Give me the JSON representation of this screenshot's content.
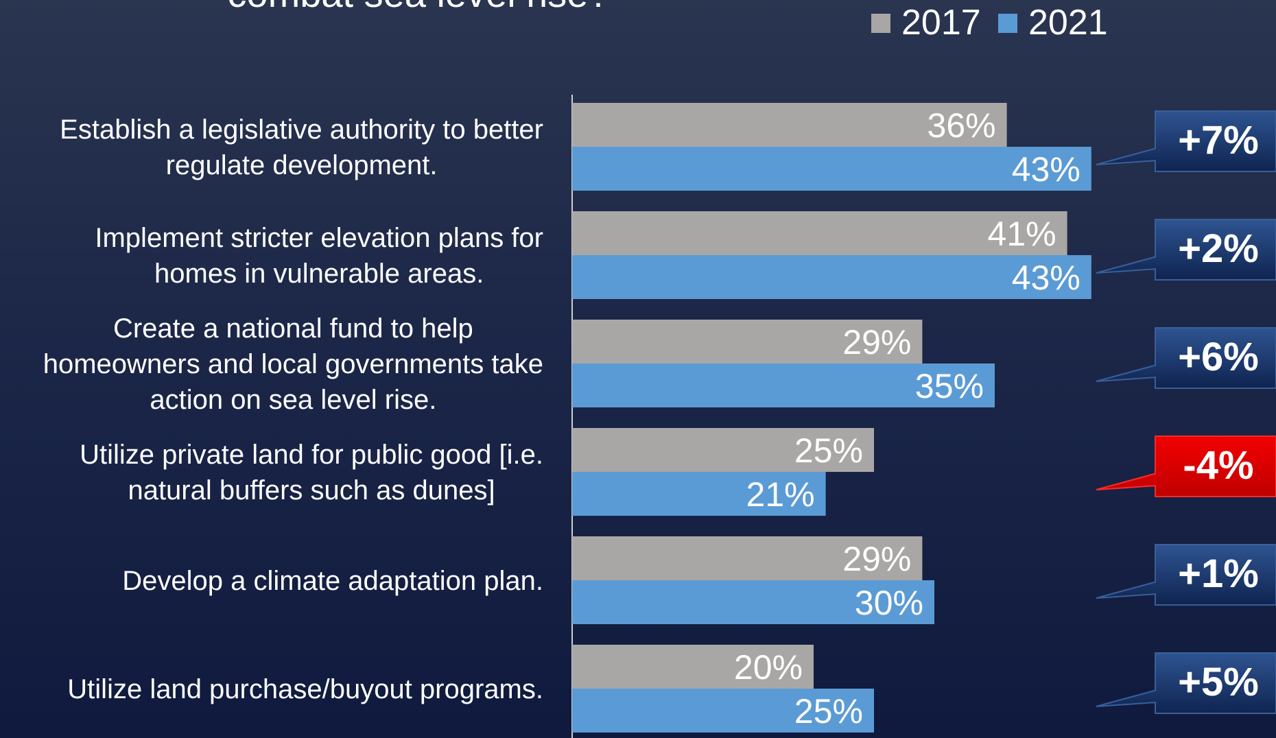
{
  "chart_data": {
    "type": "bar",
    "orientation": "horizontal",
    "title": "combat sea level rise?",
    "categories": [
      [
        "Establish a legislative authority to better",
        "regulate development."
      ],
      [
        "Implement stricter elevation plans for",
        "homes in vulnerable areas."
      ],
      [
        "Create a national fund to help",
        "homeowners and local governments take",
        "action on sea level rise."
      ],
      [
        "Utilize private land for public good [i.e.",
        "natural buffers such as dunes]"
      ],
      [
        "Develop a climate adaptation plan."
      ],
      [
        "Utilize land purchase/buyout programs."
      ]
    ],
    "series": [
      {
        "name": "2017",
        "values": [
          36,
          41,
          29,
          25,
          29,
          20
        ],
        "labels": [
          "36%",
          "41%",
          "29%",
          "25%",
          "29%",
          "20%"
        ],
        "color": "#a9a7a6"
      },
      {
        "name": "2021",
        "values": [
          43,
          43,
          35,
          21,
          30,
          25
        ],
        "labels": [
          "43%",
          "43%",
          "35%",
          "21%",
          "30%",
          "25%"
        ],
        "color": "#5b9bd5"
      }
    ],
    "changes": [
      {
        "label": "+7%",
        "positive": true
      },
      {
        "label": "+2%",
        "positive": true
      },
      {
        "label": "+6%",
        "positive": true
      },
      {
        "label": "-4%",
        "positive": false
      },
      {
        "label": "+1%",
        "positive": true
      },
      {
        "label": "+5%",
        "positive": true
      }
    ],
    "legend": "top-right",
    "grid": false,
    "colors": {
      "positive_callout": "#1f3a6e",
      "negative_callout": "#e00000",
      "text": "#ffffff"
    }
  }
}
